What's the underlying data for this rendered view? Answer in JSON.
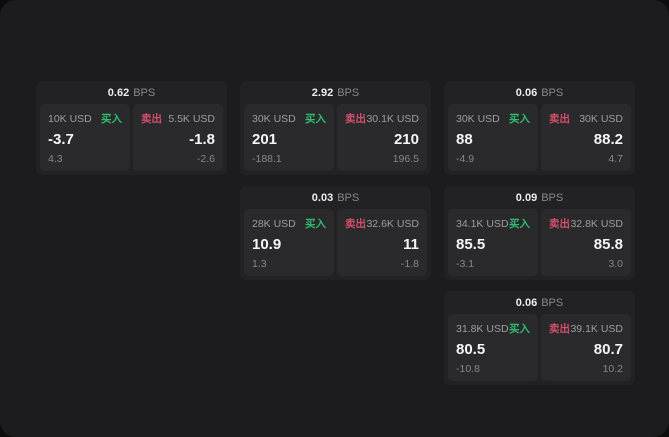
{
  "labels": {
    "bps": "BPS",
    "buy": "买入",
    "sell": "卖出"
  },
  "colors": {
    "buy": "#2ebd6e",
    "sell": "#d44e6b"
  },
  "cards": [
    {
      "row": 1,
      "col": 1,
      "bps": "0.62",
      "buy": {
        "amount": "10K USD",
        "price": "-3.7",
        "delta": "4.3"
      },
      "sell": {
        "amount": "5.5K USD",
        "price": "-1.8",
        "delta": "-2.6"
      }
    },
    {
      "row": 1,
      "col": 2,
      "bps": "2.92",
      "buy": {
        "amount": "30K USD",
        "price": "201",
        "delta": "-188.1"
      },
      "sell": {
        "amount": "30.1K USD",
        "price": "210",
        "delta": "196.5"
      }
    },
    {
      "row": 1,
      "col": 3,
      "bps": "0.06",
      "buy": {
        "amount": "30K USD",
        "price": "88",
        "delta": "-4.9"
      },
      "sell": {
        "amount": "30K USD",
        "price": "88.2",
        "delta": "4.7"
      }
    },
    {
      "row": 2,
      "col": 2,
      "bps": "0.03",
      "buy": {
        "amount": "28K USD",
        "price": "10.9",
        "delta": "1.3"
      },
      "sell": {
        "amount": "32.6K USD",
        "price": "11",
        "delta": "-1.8"
      }
    },
    {
      "row": 2,
      "col": 3,
      "bps": "0.09",
      "buy": {
        "amount": "34.1K USD",
        "price": "85.5",
        "delta": "-3.1"
      },
      "sell": {
        "amount": "32.8K USD",
        "price": "85.8",
        "delta": "3.0"
      }
    },
    {
      "row": 3,
      "col": 3,
      "bps": "0.06",
      "buy": {
        "amount": "31.8K USD",
        "price": "80.5",
        "delta": "-10.8"
      },
      "sell": {
        "amount": "39.1K USD",
        "price": "80.7",
        "delta": "10.2"
      }
    }
  ]
}
